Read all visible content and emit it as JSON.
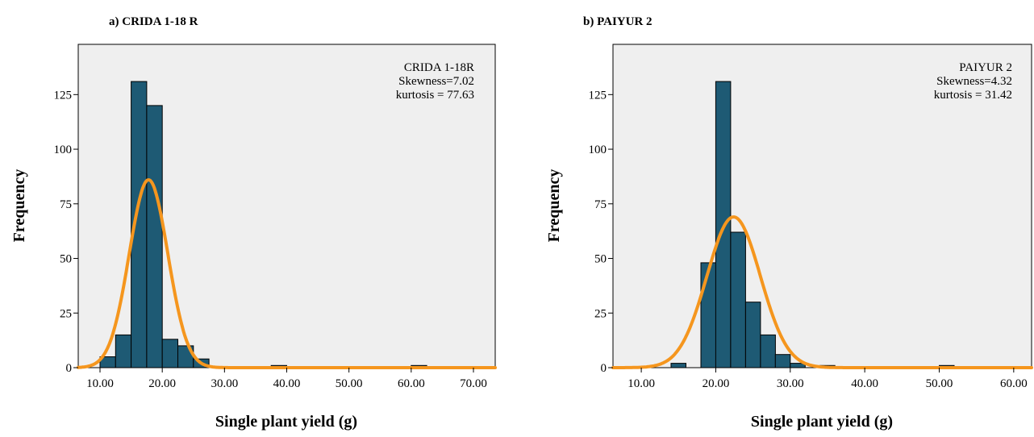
{
  "chart_data": [
    {
      "type": "bar",
      "title": "a) CRIDA 1-18 R",
      "xlabel": "Single plant yield (g)",
      "ylabel": "Frequency",
      "xlim": [
        6.5,
        73.5
      ],
      "ylim": [
        0,
        148
      ],
      "xticks": [
        "10.00",
        "20.00",
        "30.00",
        "40.00",
        "50.00",
        "60.00",
        "70.00"
      ],
      "yticks": [
        "0",
        "25",
        "50",
        "75",
        "100",
        "125"
      ],
      "bin_width": 2.5,
      "bins": [
        {
          "start": 10.0,
          "count": 5
        },
        {
          "start": 12.5,
          "count": 15
        },
        {
          "start": 15.0,
          "count": 131
        },
        {
          "start": 17.5,
          "count": 120
        },
        {
          "start": 20.0,
          "count": 13
        },
        {
          "start": 22.5,
          "count": 10
        },
        {
          "start": 25.0,
          "count": 4
        },
        {
          "start": 37.5,
          "count": 1
        },
        {
          "start": 60.0,
          "count": 1
        }
      ],
      "normal_curve": {
        "mean": 17.8,
        "sd": 3.1,
        "peak": 86
      },
      "annotation": [
        "CRIDA 1-18R",
        "Skewness=7.02",
        "kurtosis = 77.63"
      ],
      "colors": {
        "bar": "#1e5a74",
        "curve": "#f5961e",
        "plot_bg": "#efefef"
      }
    },
    {
      "type": "bar",
      "title": "b) PAIYUR 2",
      "xlabel": "Single plant yield (g)",
      "ylabel": "Frequency",
      "xlim": [
        6.2,
        62.4
      ],
      "ylim": [
        0,
        148
      ],
      "xticks": [
        "10.00",
        "20.00",
        "30.00",
        "40.00",
        "50.00",
        "60.00"
      ],
      "yticks": [
        "0",
        "25",
        "50",
        "75",
        "100",
        "125"
      ],
      "bin_width": 2.0,
      "bins": [
        {
          "start": 14.0,
          "count": 2
        },
        {
          "start": 18.0,
          "count": 48
        },
        {
          "start": 20.0,
          "count": 131
        },
        {
          "start": 22.0,
          "count": 62
        },
        {
          "start": 24.0,
          "count": 30
        },
        {
          "start": 26.0,
          "count": 15
        },
        {
          "start": 28.0,
          "count": 6
        },
        {
          "start": 30.0,
          "count": 2
        },
        {
          "start": 34.0,
          "count": 1
        },
        {
          "start": 50.0,
          "count": 1
        }
      ],
      "normal_curve": {
        "mean": 22.4,
        "sd": 3.6,
        "peak": 69
      },
      "annotation": [
        "PAIYUR 2",
        "Skewness=4.32",
        "kurtosis = 31.42"
      ],
      "colors": {
        "bar": "#1e5a74",
        "curve": "#f5961e",
        "plot_bg": "#efefef"
      }
    }
  ]
}
